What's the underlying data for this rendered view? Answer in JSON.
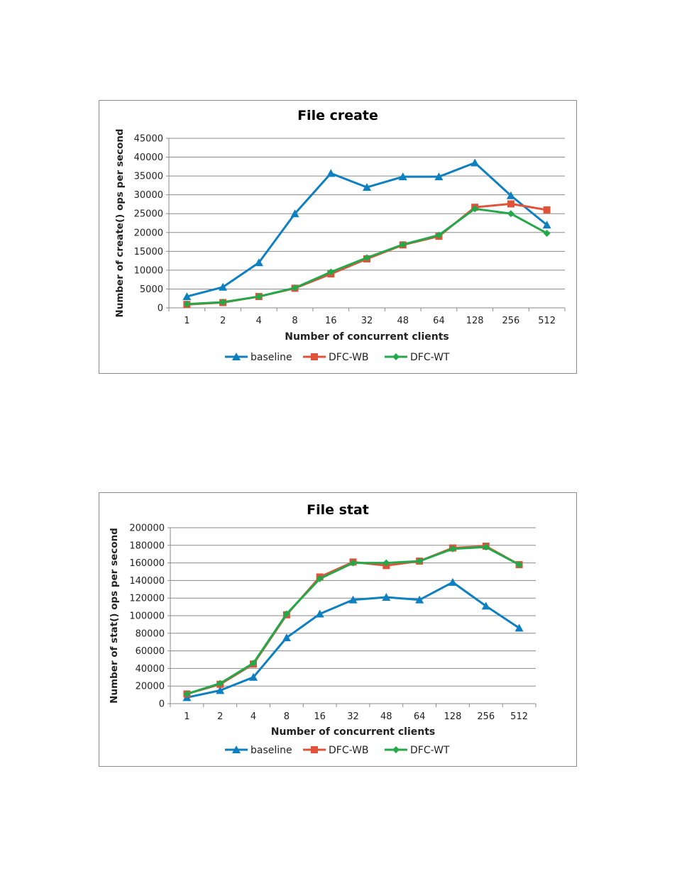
{
  "chart_data": [
    {
      "type": "line",
      "title": "File create",
      "xlabel": "Number of concurrent clients",
      "ylabel": "Number of create() ops per second",
      "categories": [
        "1",
        "2",
        "4",
        "8",
        "16",
        "32",
        "48",
        "64",
        "128",
        "256",
        "512"
      ],
      "ylim": [
        0,
        45000
      ],
      "yticks": [
        0,
        5000,
        10000,
        15000,
        20000,
        25000,
        30000,
        35000,
        40000,
        45000
      ],
      "grid": true,
      "legend": "bottom",
      "series": [
        {
          "name": "baseline",
          "color": "#0e7fc0",
          "marker": "triangle",
          "values": [
            3000,
            5500,
            12000,
            25000,
            35700,
            32000,
            34800,
            34800,
            38500,
            29800,
            22000
          ]
        },
        {
          "name": "DFC-WB",
          "color": "#e0533a",
          "marker": "square",
          "values": [
            900,
            1400,
            3000,
            5200,
            9000,
            13000,
            16700,
            19000,
            26700,
            27600,
            26000
          ]
        },
        {
          "name": "DFC-WT",
          "color": "#23a84a",
          "marker": "diamond",
          "values": [
            1000,
            1500,
            3000,
            5300,
            9500,
            13300,
            16800,
            19300,
            26300,
            25000,
            19800
          ]
        }
      ]
    },
    {
      "type": "line",
      "title": "File stat",
      "xlabel": "Number of concurrent clients",
      "ylabel": "Number of stat()  ops per second",
      "categories": [
        "1",
        "2",
        "4",
        "8",
        "16",
        "32",
        "48",
        "64",
        "128",
        "256",
        "512"
      ],
      "ylim": [
        0,
        200000
      ],
      "yticks": [
        0,
        20000,
        40000,
        60000,
        80000,
        100000,
        120000,
        140000,
        160000,
        180000,
        200000
      ],
      "grid": true,
      "legend": "bottom",
      "series": [
        {
          "name": "baseline",
          "color": "#0e7fc0",
          "marker": "triangle",
          "values": [
            7000,
            15000,
            30000,
            75000,
            102000,
            118000,
            121000,
            118000,
            138000,
            111000,
            86000
          ]
        },
        {
          "name": "DFC-WB",
          "color": "#e0533a",
          "marker": "square",
          "values": [
            11000,
            22000,
            45000,
            101000,
            144000,
            161000,
            157000,
            162000,
            177000,
            179000,
            158000
          ]
        },
        {
          "name": "DFC-WT",
          "color": "#23a84a",
          "marker": "diamond",
          "values": [
            11000,
            23000,
            46000,
            102000,
            142000,
            160000,
            160000,
            162000,
            176000,
            178000,
            158000
          ]
        }
      ]
    }
  ]
}
